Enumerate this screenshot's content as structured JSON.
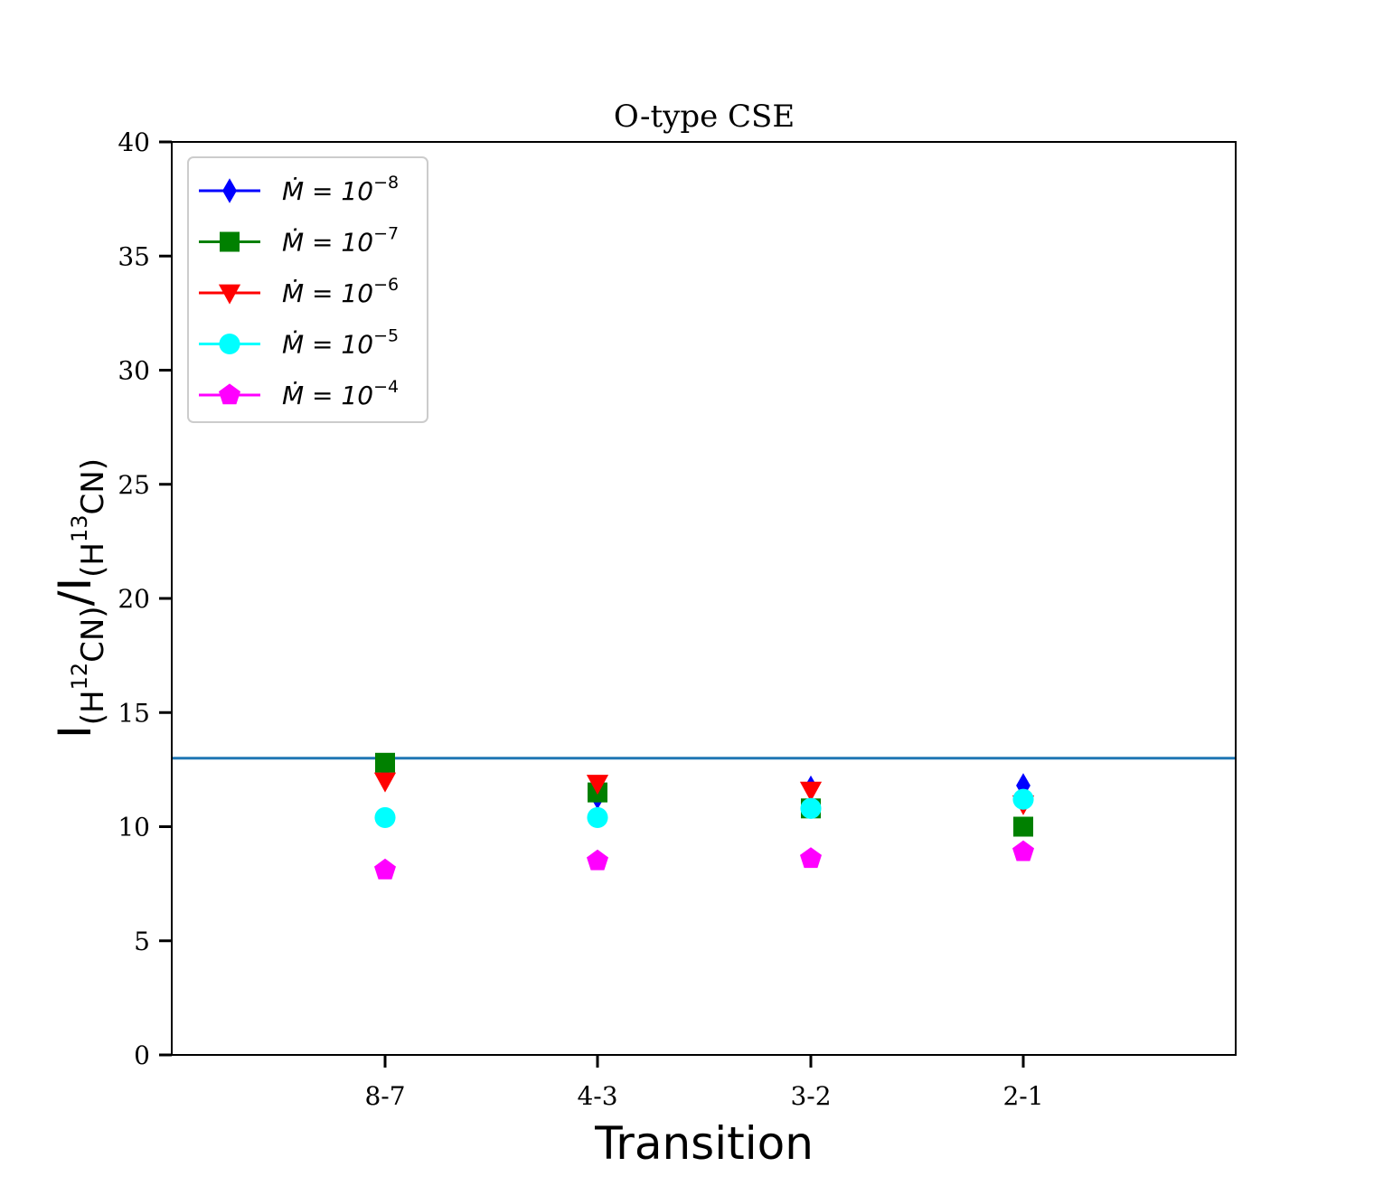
{
  "chart_data": {
    "type": "scatter",
    "title": "O-type CSE",
    "xlabel": "Transition",
    "ylabel": {
      "parts": [
        {
          "text": "I",
          "role": "base"
        },
        {
          "text": "(H",
          "role": "sub"
        },
        {
          "text": "12",
          "role": "subsup"
        },
        {
          "text": "CN)",
          "role": "sub"
        },
        {
          "text": "/I",
          "role": "base"
        },
        {
          "text": "(H",
          "role": "sub"
        },
        {
          "text": "13",
          "role": "subsup"
        },
        {
          "text": "CN)",
          "role": "sub"
        }
      ]
    },
    "categories": [
      "8-7",
      "4-3",
      "3-2",
      "2-1"
    ],
    "ylim": [
      0,
      40
    ],
    "yticks": [
      0,
      5,
      10,
      15,
      20,
      25,
      30,
      35,
      40
    ],
    "grid": false,
    "legend_position": "top-left",
    "reference_line": {
      "y": 13.0,
      "color": "#1f77b4"
    },
    "series": [
      {
        "name_base": "Ṁ = 10",
        "name_exp": "−8",
        "marker": "diamond",
        "color": "#0000ff",
        "values": [
          12.6,
          11.3,
          11.7,
          11.8
        ]
      },
      {
        "name_base": "Ṁ = 10",
        "name_exp": "−7",
        "marker": "square",
        "color": "#008000",
        "values": [
          12.8,
          11.5,
          10.8,
          10.0
        ]
      },
      {
        "name_base": "Ṁ = 10",
        "name_exp": "−6",
        "marker": "triangle-down",
        "color": "#ff0000",
        "values": [
          12.0,
          11.9,
          11.6,
          11.0
        ]
      },
      {
        "name_base": "Ṁ = 10",
        "name_exp": "−5",
        "marker": "circle",
        "color": "#00ffff",
        "values": [
          10.4,
          10.4,
          10.8,
          11.2
        ]
      },
      {
        "name_base": "Ṁ = 10",
        "name_exp": "−4",
        "marker": "pentagon",
        "color": "#ff00ff",
        "values": [
          8.1,
          8.5,
          8.6,
          8.9
        ]
      }
    ]
  }
}
